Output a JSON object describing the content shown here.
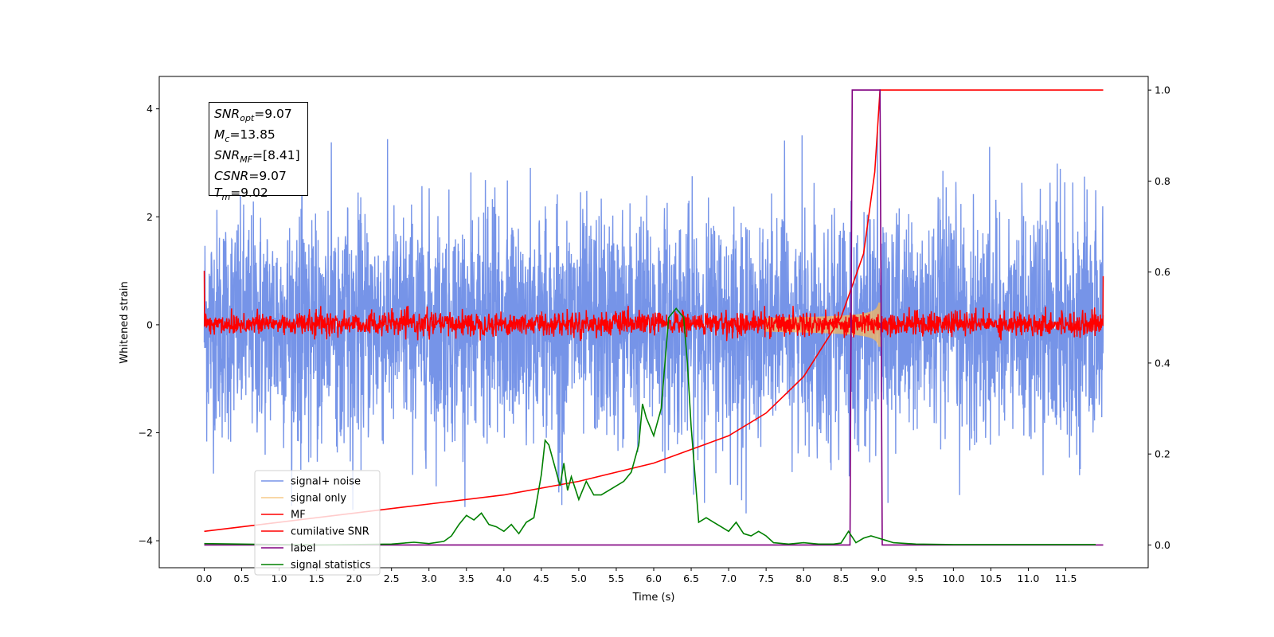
{
  "chart_data": {
    "type": "line",
    "xlabel": "Time (s)",
    "ylabel": "Whitened strain",
    "xlim": [
      -0.6,
      12.6
    ],
    "ylim": [
      -4.5,
      4.6
    ],
    "y2lim": [
      -0.05,
      1.03
    ],
    "xticks": [
      "0.0",
      "0.5",
      "1.0",
      "1.5",
      "2.0",
      "2.5",
      "3.0",
      "3.5",
      "4.0",
      "4.5",
      "5.0",
      "5.5",
      "6.0",
      "6.5",
      "7.0",
      "7.5",
      "8.0",
      "8.5",
      "9.0",
      "9.5",
      "10.0",
      "10.5",
      "11.0",
      "11.5"
    ],
    "yticks": [
      "−4",
      "−2",
      "0",
      "2",
      "4"
    ],
    "y2ticks": [
      "0.0",
      "0.2",
      "0.4",
      "0.6",
      "0.8",
      "1.0"
    ],
    "legend": {
      "placement": "lower-left",
      "entries": [
        "signal+ noise",
        "signal only",
        "MF",
        "cumilative SNR",
        "label",
        "signal statistics"
      ]
    },
    "annotation": {
      "lines": [
        {
          "var": "SNR",
          "sub": "opt",
          "text": "=9.07"
        },
        {
          "var": "M",
          "sub": "c",
          "text": "=13.85"
        },
        {
          "var": "SNR",
          "sub": "MF",
          "text": "=[8.41]"
        },
        {
          "var": "CSNR",
          "sub": "",
          "text": "=9.07"
        },
        {
          "var": "T",
          "sub": "m",
          "text": "=9.02"
        }
      ]
    },
    "series": [
      {
        "name": "signal+ noise",
        "color": "#7694e8",
        "axis": "left",
        "kind": "noise",
        "x_range": [
          0,
          12
        ],
        "amplitude": [
          -3.5,
          4.0
        ]
      },
      {
        "name": "signal only",
        "color": "#f4b860",
        "axis": "left",
        "kind": "chirp",
        "x_range": [
          7.5,
          9.02
        ],
        "peak": 0.75
      },
      {
        "name": "MF",
        "color": "#ff0000",
        "axis": "left",
        "kind": "noise",
        "x_range": [
          0,
          12
        ],
        "amplitude": [
          -0.3,
          0.35
        ],
        "edges": [
          1.0,
          0.9
        ]
      },
      {
        "name": "cumilative SNR",
        "color": "#ff0000",
        "axis": "right",
        "x": [
          0.0,
          1.0,
          2.0,
          3.0,
          4.0,
          5.0,
          6.0,
          6.5,
          7.0,
          7.5,
          8.0,
          8.5,
          8.8,
          8.95,
          9.02,
          9.05,
          12.0
        ],
        "y": [
          0.03,
          0.05,
          0.07,
          0.09,
          0.11,
          0.14,
          0.18,
          0.21,
          0.24,
          0.29,
          0.37,
          0.5,
          0.64,
          0.82,
          1.0,
          1.0,
          1.0
        ]
      },
      {
        "name": "label",
        "color": "#800080",
        "axis": "right",
        "x": [
          0.0,
          8.62,
          8.65,
          8.95,
          9.02,
          9.05,
          12.0
        ],
        "y": [
          0.0,
          0.0,
          1.0,
          1.0,
          1.0,
          0.0,
          0.0
        ]
      },
      {
        "name": "signal statistics",
        "color": "#008000",
        "axis": "right",
        "x": [
          0.0,
          0.5,
          1.0,
          1.5,
          2.0,
          2.5,
          2.8,
          3.0,
          3.2,
          3.3,
          3.4,
          3.5,
          3.6,
          3.7,
          3.8,
          3.9,
          4.0,
          4.1,
          4.2,
          4.3,
          4.4,
          4.5,
          4.55,
          4.6,
          4.7,
          4.75,
          4.8,
          4.85,
          4.9,
          5.0,
          5.1,
          5.2,
          5.3,
          5.4,
          5.5,
          5.6,
          5.7,
          5.8,
          5.85,
          5.9,
          6.0,
          6.1,
          6.2,
          6.3,
          6.4,
          6.45,
          6.5,
          6.6,
          6.7,
          6.8,
          6.9,
          7.0,
          7.1,
          7.2,
          7.3,
          7.4,
          7.5,
          7.6,
          7.8,
          8.0,
          8.2,
          8.4,
          8.5,
          8.6,
          8.7,
          8.8,
          8.9,
          9.0,
          9.1,
          9.2,
          9.5,
          10.0,
          10.5,
          11.0,
          11.5,
          11.9
        ],
        "y": [
          0.003,
          0.002,
          0.001,
          0.0,
          0.001,
          0.002,
          0.006,
          0.003,
          0.008,
          0.02,
          0.045,
          0.065,
          0.055,
          0.07,
          0.045,
          0.04,
          0.03,
          0.045,
          0.025,
          0.05,
          0.06,
          0.155,
          0.23,
          0.22,
          0.16,
          0.13,
          0.18,
          0.12,
          0.15,
          0.1,
          0.14,
          0.11,
          0.11,
          0.12,
          0.13,
          0.14,
          0.16,
          0.22,
          0.31,
          0.28,
          0.24,
          0.3,
          0.5,
          0.52,
          0.5,
          0.4,
          0.26,
          0.05,
          0.06,
          0.05,
          0.04,
          0.03,
          0.05,
          0.025,
          0.02,
          0.03,
          0.02,
          0.005,
          0.002,
          0.005,
          0.002,
          0.002,
          0.004,
          0.03,
          0.005,
          0.015,
          0.02,
          0.015,
          0.01,
          0.005,
          0.002,
          0.001,
          0.001,
          0.001,
          0.001,
          0.001
        ]
      }
    ]
  }
}
